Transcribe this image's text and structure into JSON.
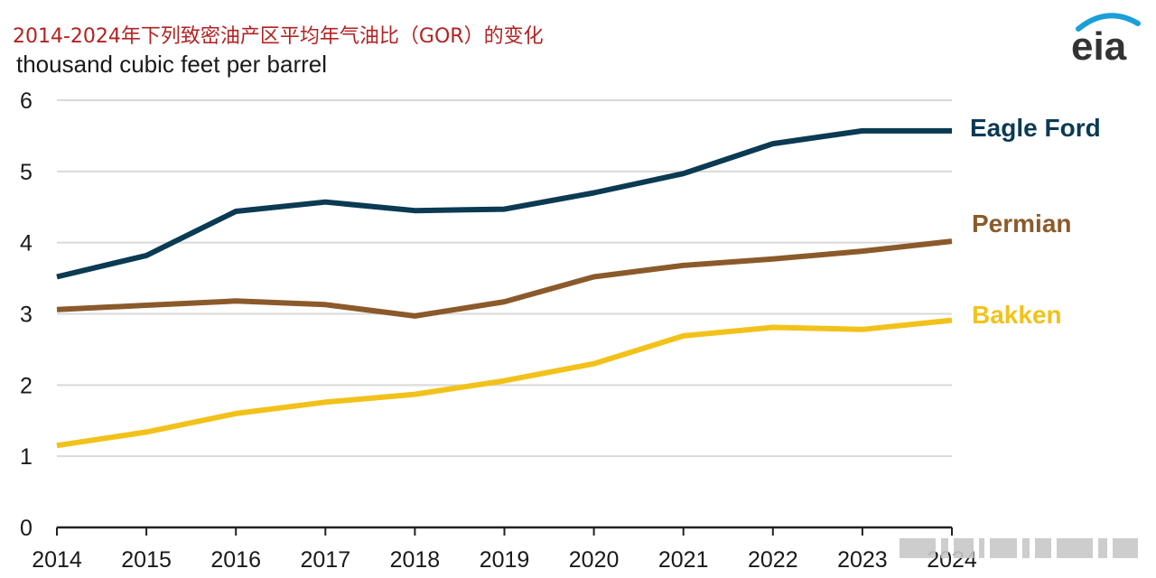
{
  "header": {
    "title": "2014-2024年下列致密油产区平均年气油比（GOR）的变化",
    "unit": "thousand cubic feet per barrel",
    "logo_text": "eia"
  },
  "colors": {
    "title": "#b22222",
    "eagle_ford": "#0b3a53",
    "permian": "#8b5a2b",
    "bakken": "#f2c21b",
    "grid": "#d9d9d9",
    "logo_arc": "#1a9fd8"
  },
  "chart_data": {
    "type": "line",
    "title": "2014-2024年下列致密油产区平均年气油比（GOR）的变化",
    "ylabel": "thousand cubic feet per barrel",
    "xlabel": "",
    "x": [
      "2014",
      "2015",
      "2016",
      "2017",
      "2018",
      "2019",
      "2020",
      "2021",
      "2022",
      "2023",
      "2024"
    ],
    "ylim": [
      0,
      6
    ],
    "yticks": [
      "0",
      "1",
      "2",
      "3",
      "4",
      "5",
      "6"
    ],
    "grid": true,
    "legend": "inline-right",
    "series": [
      {
        "name": "Eagle Ford",
        "color": "#0b3a53",
        "values": [
          3.52,
          3.82,
          4.44,
          4.57,
          4.45,
          4.47,
          4.7,
          4.97,
          5.39,
          5.57,
          5.57
        ]
      },
      {
        "name": "Permian",
        "color": "#8b5a2b",
        "values": [
          3.06,
          3.12,
          3.18,
          3.13,
          2.97,
          3.17,
          3.52,
          3.68,
          3.77,
          3.88,
          4.02
        ]
      },
      {
        "name": "Bakken",
        "color": "#f2c21b",
        "values": [
          1.15,
          1.34,
          1.6,
          1.76,
          1.87,
          2.06,
          2.3,
          2.69,
          2.81,
          2.78,
          2.91
        ]
      }
    ]
  }
}
